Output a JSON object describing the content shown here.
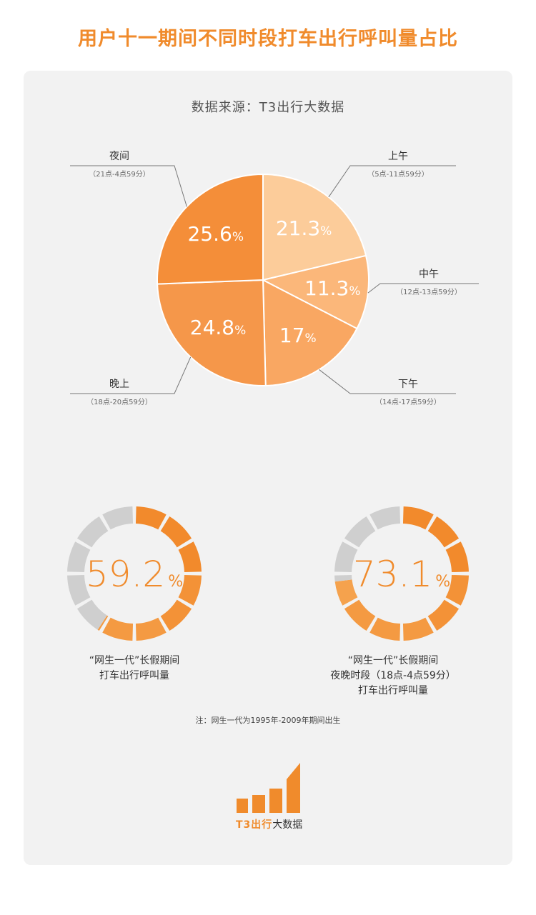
{
  "title": "用户十一期间不同时段打车出行呼叫量占比",
  "source": "数据来源：T3出行大数据",
  "colors": {
    "accent": "#f08b2c",
    "slice_morning": "#fccc9a",
    "slice_noon": "#fbb77a",
    "slice_afternoon": "#f9a762",
    "slice_evening": "#f5974a",
    "slice_night": "#f48e39",
    "donut_gray": "#cfcfcf"
  },
  "chart_data": [
    {
      "type": "pie",
      "title": "",
      "slices": [
        {
          "name": "上午",
          "range": "（5点-11点59分）",
          "value": 21.3,
          "label": "21.3"
        },
        {
          "name": "中午",
          "range": "（12点-13点59分）",
          "value": 11.3,
          "label": "11.3"
        },
        {
          "name": "下午",
          "range": "（14点-17点59分）",
          "value": 17,
          "label": "17"
        },
        {
          "name": "晚上",
          "range": "（18点-20点59分）",
          "value": 24.8,
          "label": "24.8"
        },
        {
          "name": "夜间",
          "range": "（21点-4点59分）",
          "value": 25.6,
          "label": "25.6"
        }
      ],
      "unit": "%"
    },
    {
      "type": "pie",
      "value": 59.2,
      "label": "59.2",
      "unit": "%",
      "caption": [
        "“网生一代”长假期间",
        "打车出行呼叫量"
      ]
    },
    {
      "type": "pie",
      "value": 73.1,
      "label": "73.1",
      "unit": "%",
      "caption": [
        "“网生一代”长假期间",
        "夜晚时段（18点-4点59分）",
        "打车出行呼叫量"
      ]
    }
  ],
  "note": "注：网生一代为1995年-2009年期间出生",
  "logo": {
    "brand": "T3出行",
    "suffix": "大数据"
  }
}
